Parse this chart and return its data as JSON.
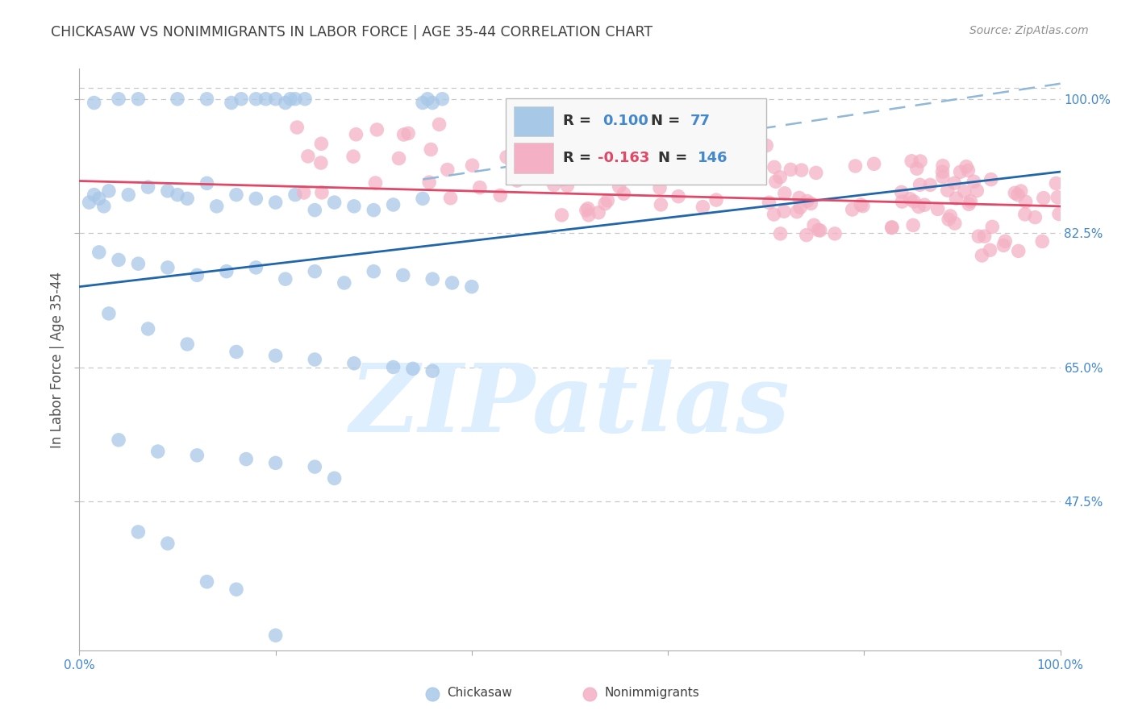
{
  "title": "CHICKASAW VS NONIMMIGRANTS IN LABOR FORCE | AGE 35-44 CORRELATION CHART",
  "source_text": "Source: ZipAtlas.com",
  "ylabel": "In Labor Force | Age 35-44",
  "xlim": [
    0.0,
    1.0
  ],
  "ylim": [
    0.28,
    1.04
  ],
  "yticks": [
    0.475,
    0.65,
    0.825,
    1.0
  ],
  "ytick_labels": [
    "47.5%",
    "65.0%",
    "82.5%",
    "100.0%"
  ],
  "xtick_positions": [
    0.0,
    0.2,
    0.4,
    0.6,
    0.8,
    1.0
  ],
  "xtick_labels": [
    "0.0%",
    "",
    "",
    "",
    "",
    "100.0%"
  ],
  "chickasaw_color": "#a8c8e8",
  "nonimmigrant_color": "#f4b0c4",
  "regression_blue_color": "#2266aa",
  "regression_pink_color": "#e04868",
  "dashed_line_color": "#90b8d8",
  "background_color": "#ffffff",
  "grid_color": "#c8c8cc",
  "watermark_color": "#ddeeff",
  "title_color": "#404040",
  "axis_label_color": "#505050",
  "tick_label_color": "#4488cc",
  "R1": 0.1,
  "N1": 77,
  "R2": -0.163,
  "N2": 146,
  "seed": 42,
  "blue_line_x0": 0.0,
  "blue_line_y0": 0.755,
  "blue_line_x1": 1.0,
  "blue_line_y1": 0.905,
  "pink_line_x0": 0.0,
  "pink_line_y0": 0.893,
  "pink_line_x1": 1.0,
  "pink_line_y1": 0.86,
  "dash_line_x0": 0.35,
  "dash_line_y0": 0.895,
  "dash_line_x1": 1.0,
  "dash_line_y1": 1.02
}
